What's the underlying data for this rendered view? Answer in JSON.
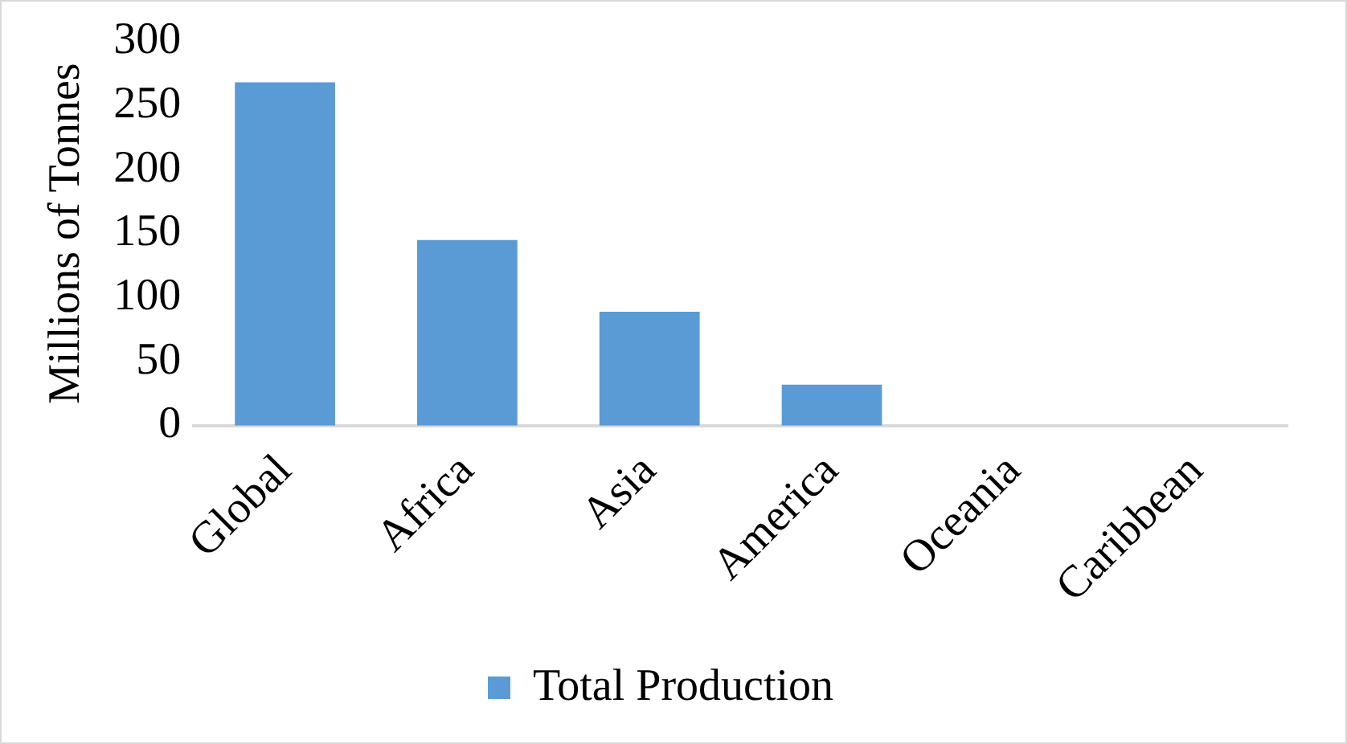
{
  "chart_data": {
    "type": "bar",
    "ylabel": "Millions of Tonnes",
    "categories": [
      "Global",
      "Africa",
      "Asia",
      "America",
      "Oceania",
      "Caribbean"
    ],
    "series": [
      {
        "name": "Total Production",
        "color": "#5b9bd5",
        "values": [
          268,
          145,
          89,
          32,
          0,
          0
        ]
      }
    ],
    "ylim": [
      0,
      300
    ],
    "yticks": [
      0,
      50,
      100,
      150,
      200,
      250,
      300
    ],
    "grid": false,
    "legend": "bottom"
  }
}
